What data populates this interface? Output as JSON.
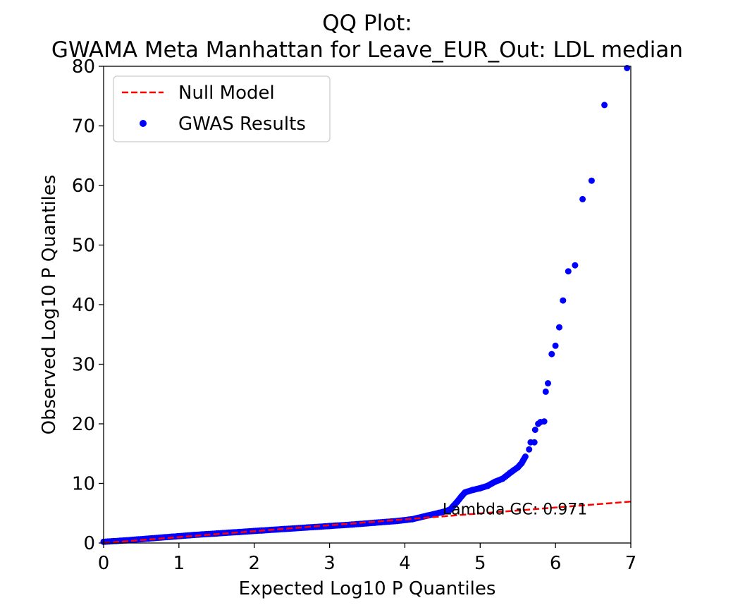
{
  "chart_data": {
    "type": "scatter",
    "title_line1": "QQ Plot:",
    "title_line2": "GWAMA Meta Manhattan for Leave_EUR_Out: LDL median",
    "xlabel": "Expected Log10 P Quantiles",
    "ylabel": "Observed Log10 P Quantiles",
    "xlim": [
      0,
      7
    ],
    "ylim": [
      0,
      80
    ],
    "xticks": [
      0,
      1,
      2,
      3,
      4,
      5,
      6,
      7
    ],
    "yticks": [
      0,
      10,
      20,
      30,
      40,
      50,
      60,
      70,
      80
    ],
    "grid": false,
    "legend_position": "top-left",
    "annotation": "Lambda GC: 0.971",
    "annotation_anchor": [
      4.5,
      4.8
    ],
    "series": [
      {
        "name": "Null Model",
        "kind": "line",
        "style": "dashed",
        "color": "#ff0000",
        "x": [
          0,
          7
        ],
        "y": [
          0,
          6.95
        ]
      },
      {
        "name": "GWAS Results",
        "kind": "scatter",
        "color": "#0000ff",
        "points": [
          [
            0.0,
            0.2
          ],
          [
            0.3,
            0.45
          ],
          [
            0.6,
            0.75
          ],
          [
            0.9,
            1.05
          ],
          [
            1.2,
            1.35
          ],
          [
            1.5,
            1.6
          ],
          [
            1.8,
            1.85
          ],
          [
            2.1,
            2.1
          ],
          [
            2.4,
            2.35
          ],
          [
            2.7,
            2.6
          ],
          [
            3.0,
            2.85
          ],
          [
            3.3,
            3.1
          ],
          [
            3.6,
            3.4
          ],
          [
            3.9,
            3.7
          ],
          [
            4.1,
            4.0
          ],
          [
            4.3,
            4.6
          ],
          [
            4.5,
            5.2
          ],
          [
            4.6,
            5.6
          ],
          [
            4.65,
            6.3
          ],
          [
            4.7,
            7.0
          ],
          [
            4.75,
            7.8
          ],
          [
            4.8,
            8.5
          ],
          [
            4.9,
            8.9
          ],
          [
            5.0,
            9.2
          ],
          [
            5.1,
            9.6
          ],
          [
            5.2,
            10.3
          ],
          [
            5.3,
            10.8
          ],
          [
            5.4,
            11.8
          ],
          [
            5.5,
            12.7
          ],
          [
            5.55,
            13.4
          ],
          [
            5.6,
            14.5
          ],
          [
            5.65,
            15.7
          ],
          [
            5.67,
            16.9
          ],
          [
            5.72,
            16.9
          ],
          [
            5.73,
            19.0
          ],
          [
            5.77,
            20.0
          ],
          [
            5.8,
            20.3
          ],
          [
            5.85,
            20.4
          ],
          [
            5.87,
            25.4
          ],
          [
            5.9,
            26.8
          ],
          [
            5.95,
            31.7
          ],
          [
            6.0,
            33.1
          ],
          [
            6.05,
            36.2
          ],
          [
            6.1,
            40.7
          ],
          [
            6.17,
            45.6
          ],
          [
            6.26,
            46.6
          ],
          [
            6.36,
            57.7
          ],
          [
            6.48,
            60.8
          ],
          [
            6.65,
            73.5
          ],
          [
            6.95,
            79.7
          ]
        ]
      }
    ]
  }
}
